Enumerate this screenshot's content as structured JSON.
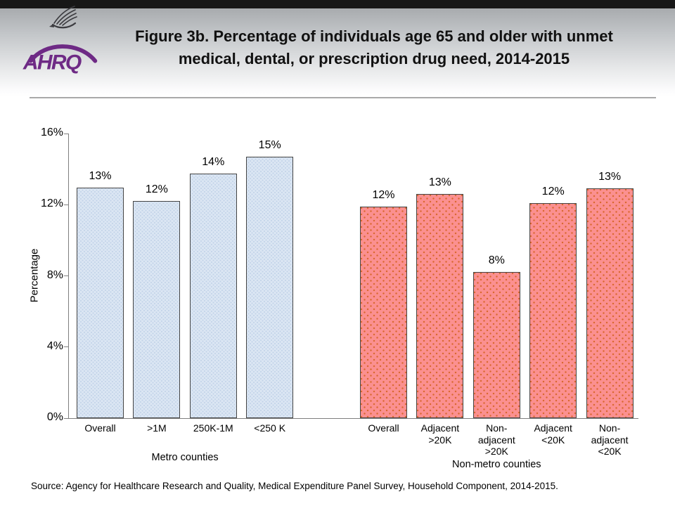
{
  "header": {
    "title": "Figure 3b. Percentage of individuals age 65 and older with unmet\nmedical, dental, or prescription drug need, 2014-2015",
    "logo": {
      "org": "AHRQ",
      "eagle_icon": "hhs-eagle-icon",
      "wordmark": "AHRQ"
    }
  },
  "chart_data": {
    "type": "bar",
    "ylabel": "Percentage",
    "ylim": [
      0,
      16
    ],
    "yticks": [
      {
        "value": 0,
        "label": "0%"
      },
      {
        "value": 4,
        "label": "4%"
      },
      {
        "value": 8,
        "label": "8%"
      },
      {
        "value": 12,
        "label": "12%"
      },
      {
        "value": 16,
        "label": "16%"
      }
    ],
    "grid": false,
    "legend": "none",
    "groups": [
      {
        "name": "Metro counties",
        "fill": "#dbe6f3",
        "bars": [
          {
            "category_lines": [
              "Overall"
            ],
            "value": 13,
            "label": "13%",
            "height_pct": 12.95
          },
          {
            "category_lines": [
              ">1M"
            ],
            "value": 12,
            "label": "12%",
            "height_pct": 12.2
          },
          {
            "category_lines": [
              "250K-1M"
            ],
            "value": 14,
            "label": "14%",
            "height_pct": 13.75
          },
          {
            "category_lines": [
              "<250 K"
            ],
            "value": 15,
            "label": "15%",
            "height_pct": 14.7
          }
        ]
      },
      {
        "name": "Non-metro counties",
        "fill": "#fb9090",
        "bars": [
          {
            "category_lines": [
              "Overall"
            ],
            "value": 12,
            "label": "12%",
            "height_pct": 11.9
          },
          {
            "category_lines": [
              "Adjacent",
              ">20K"
            ],
            "value": 13,
            "label": "13%",
            "height_pct": 12.6
          },
          {
            "category_lines": [
              "Non-",
              "adjacent",
              ">20K"
            ],
            "value": 8,
            "label": "8%",
            "height_pct": 8.2
          },
          {
            "category_lines": [
              "Adjacent",
              "<20K"
            ],
            "value": 12,
            "label": "12%",
            "height_pct": 12.1
          },
          {
            "category_lines": [
              "Non-",
              "adjacent",
              "<20K"
            ],
            "value": 13,
            "label": "13%",
            "height_pct": 12.9
          }
        ]
      }
    ]
  },
  "footer": {
    "source": "Source: Agency for Healthcare Research and Quality, Medical Expenditure Panel Survey, Household Component, 2014-2015."
  },
  "colors": {
    "metro_fill": "#dbe6f3",
    "metro_dots": "#c2d3e8",
    "nonmetro_fill": "#fb9090",
    "nonmetro_dots": "#d9682f",
    "bar_border": "#454545",
    "axis": "#7f7f7f",
    "ahrq_purple": "#6e2a85",
    "header_top": "#a8abae",
    "top_strip": "#171717"
  }
}
